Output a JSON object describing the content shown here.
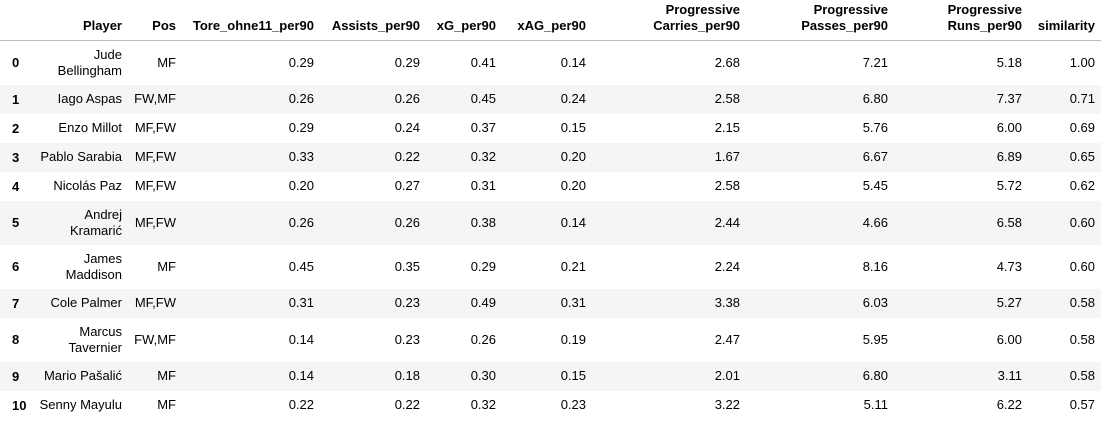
{
  "table": {
    "columns": [
      "",
      "Player",
      "Pos",
      "Tore_ohne11_per90",
      "Assists_per90",
      "xG_per90",
      "xAG_per90",
      "Progressive Carries_per90",
      "Progressive Passes_per90",
      "Progressive Runs_per90",
      "similarity"
    ],
    "rows": [
      {
        "index": "0",
        "player": "Jude Bellingham",
        "pos": "MF",
        "tore": "0.29",
        "assists": "0.29",
        "xg": "0.41",
        "xag": "0.14",
        "carries": "2.68",
        "passes": "7.21",
        "runs": "5.18",
        "similarity": "1.00"
      },
      {
        "index": "1",
        "player": "Iago Aspas",
        "pos": "FW,MF",
        "tore": "0.26",
        "assists": "0.26",
        "xg": "0.45",
        "xag": "0.24",
        "carries": "2.58",
        "passes": "6.80",
        "runs": "7.37",
        "similarity": "0.71"
      },
      {
        "index": "2",
        "player": "Enzo Millot",
        "pos": "MF,FW",
        "tore": "0.29",
        "assists": "0.24",
        "xg": "0.37",
        "xag": "0.15",
        "carries": "2.15",
        "passes": "5.76",
        "runs": "6.00",
        "similarity": "0.69"
      },
      {
        "index": "3",
        "player": "Pablo Sarabia",
        "pos": "MF,FW",
        "tore": "0.33",
        "assists": "0.22",
        "xg": "0.32",
        "xag": "0.20",
        "carries": "1.67",
        "passes": "6.67",
        "runs": "6.89",
        "similarity": "0.65"
      },
      {
        "index": "4",
        "player": "Nicolás Paz",
        "pos": "MF,FW",
        "tore": "0.20",
        "assists": "0.27",
        "xg": "0.31",
        "xag": "0.20",
        "carries": "2.58",
        "passes": "5.45",
        "runs": "5.72",
        "similarity": "0.62"
      },
      {
        "index": "5",
        "player": "Andrej Kramarić",
        "pos": "MF,FW",
        "tore": "0.26",
        "assists": "0.26",
        "xg": "0.38",
        "xag": "0.14",
        "carries": "2.44",
        "passes": "4.66",
        "runs": "6.58",
        "similarity": "0.60"
      },
      {
        "index": "6",
        "player": "James Maddison",
        "pos": "MF",
        "tore": "0.45",
        "assists": "0.35",
        "xg": "0.29",
        "xag": "0.21",
        "carries": "2.24",
        "passes": "8.16",
        "runs": "4.73",
        "similarity": "0.60"
      },
      {
        "index": "7",
        "player": "Cole Palmer",
        "pos": "MF,FW",
        "tore": "0.31",
        "assists": "0.23",
        "xg": "0.49",
        "xag": "0.31",
        "carries": "3.38",
        "passes": "6.03",
        "runs": "5.27",
        "similarity": "0.58"
      },
      {
        "index": "8",
        "player": "Marcus Tavernier",
        "pos": "FW,MF",
        "tore": "0.14",
        "assists": "0.23",
        "xg": "0.26",
        "xag": "0.19",
        "carries": "2.47",
        "passes": "5.95",
        "runs": "6.00",
        "similarity": "0.58"
      },
      {
        "index": "9",
        "player": "Mario Pašalić",
        "pos": "MF",
        "tore": "0.14",
        "assists": "0.18",
        "xg": "0.30",
        "xag": "0.15",
        "carries": "2.01",
        "passes": "6.80",
        "runs": "3.11",
        "similarity": "0.58"
      },
      {
        "index": "10",
        "player": "Senny Mayulu",
        "pos": "MF",
        "tore": "0.22",
        "assists": "0.22",
        "xg": "0.32",
        "xag": "0.23",
        "carries": "3.22",
        "passes": "5.11",
        "runs": "6.22",
        "similarity": "0.57"
      }
    ]
  },
  "colors": {
    "stripe": "#f5f5f5",
    "border": "#bdbdbd",
    "text": "#000000"
  }
}
